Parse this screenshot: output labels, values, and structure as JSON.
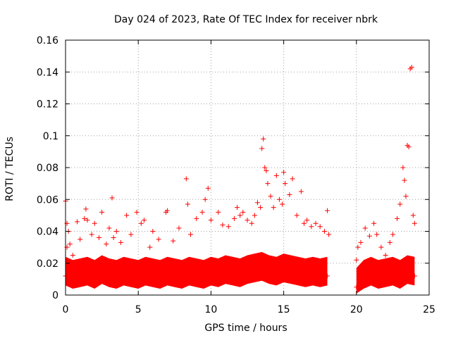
{
  "chart_data": {
    "type": "scatter",
    "title": "Day 024 of 2023, Rate Of TEC Index for receiver nbrk",
    "xlabel": "GPS time / hours",
    "ylabel": "ROTI / TECUs",
    "xlim": [
      0,
      25
    ],
    "ylim": [
      0,
      0.16
    ],
    "xticks": [
      0,
      5,
      10,
      15,
      20,
      25
    ],
    "xtick_labels": [
      "0",
      "5",
      "10",
      "15",
      "20",
      "25"
    ],
    "yticks": [
      0,
      0.02,
      0.04,
      0.06,
      0.08,
      0.1,
      0.12,
      0.14,
      0.16
    ],
    "ytick_labels": [
      "0",
      "0.02",
      "0.04",
      "0.06",
      "0.08",
      "0.1",
      "0.12",
      "0.14",
      "0.16"
    ],
    "grid": true,
    "marker": "plus",
    "color": "#ff0000",
    "series": [
      {
        "x": [
          0.0,
          0.1,
          0.1,
          0.2,
          0.3,
          0.5,
          0.8,
          1.0,
          1.3,
          1.4,
          1.5,
          1.8,
          2.0,
          2.3,
          2.5,
          2.8,
          3.0,
          3.2,
          3.3,
          3.5,
          3.8,
          4.2,
          4.5,
          4.9,
          5.2,
          5.4,
          5.8,
          6.0,
          6.4,
          6.9,
          7.0,
          7.4,
          7.8,
          8.3,
          8.4,
          8.6,
          9.0,
          9.4,
          9.6,
          9.8,
          10.0,
          10.5,
          10.8,
          11.2,
          11.6,
          11.8,
          12.0,
          12.2,
          12.5,
          12.8,
          13.0,
          13.2,
          13.4,
          13.5,
          13.6,
          13.7,
          13.8,
          13.9,
          14.1,
          14.3,
          14.5,
          14.7,
          14.9,
          15.0,
          15.1,
          15.4,
          15.6,
          15.9,
          16.2,
          16.4,
          16.6,
          16.9,
          17.2,
          17.5,
          17.8,
          18.0,
          18.1,
          20.0,
          20.1,
          20.3,
          20.6,
          20.9,
          21.2,
          21.4,
          21.7,
          22.0,
          22.3,
          22.5,
          22.8,
          23.0,
          23.2,
          23.3,
          23.4,
          23.5,
          23.6,
          23.7,
          23.8,
          23.9,
          24.0
        ],
        "y": [
          0.059,
          0.045,
          0.03,
          0.04,
          0.032,
          0.025,
          0.046,
          0.035,
          0.048,
          0.054,
          0.047,
          0.038,
          0.045,
          0.036,
          0.052,
          0.032,
          0.042,
          0.061,
          0.036,
          0.04,
          0.033,
          0.05,
          0.038,
          0.052,
          0.045,
          0.047,
          0.03,
          0.04,
          0.035,
          0.052,
          0.053,
          0.034,
          0.042,
          0.073,
          0.057,
          0.038,
          0.048,
          0.052,
          0.06,
          0.067,
          0.047,
          0.052,
          0.044,
          0.043,
          0.048,
          0.055,
          0.05,
          0.052,
          0.047,
          0.045,
          0.05,
          0.058,
          0.055,
          0.092,
          0.098,
          0.08,
          0.078,
          0.07,
          0.062,
          0.055,
          0.075,
          0.06,
          0.057,
          0.077,
          0.07,
          0.063,
          0.073,
          0.05,
          0.065,
          0.045,
          0.047,
          0.043,
          0.045,
          0.043,
          0.04,
          0.053,
          0.038,
          0.022,
          0.03,
          0.033,
          0.042,
          0.037,
          0.045,
          0.038,
          0.03,
          0.025,
          0.033,
          0.038,
          0.048,
          0.057,
          0.08,
          0.072,
          0.062,
          0.094,
          0.093,
          0.142,
          0.143,
          0.05,
          0.045
        ]
      },
      {
        "x": [
          0.0,
          0.5,
          1.0,
          1.5,
          2.0,
          2.5,
          3.0,
          3.5,
          4.0,
          4.5,
          5.0,
          5.5,
          6.0,
          6.5,
          7.0,
          7.5,
          8.0,
          8.5,
          9.0,
          9.5,
          10.0,
          10.5,
          11.0,
          11.5,
          12.0,
          12.5,
          13.0,
          13.5,
          14.0,
          14.5,
          15.0,
          15.5,
          16.0,
          16.5,
          17.0,
          17.5,
          18.0,
          20.0,
          20.5,
          21.0,
          21.5,
          22.0,
          22.5,
          23.0,
          23.5,
          24.0
        ],
        "y": [
          0.012,
          0.01,
          0.011,
          0.012,
          0.01,
          0.013,
          0.011,
          0.01,
          0.012,
          0.011,
          0.01,
          0.012,
          0.011,
          0.01,
          0.012,
          0.011,
          0.01,
          0.012,
          0.011,
          0.01,
          0.012,
          0.011,
          0.013,
          0.012,
          0.011,
          0.013,
          0.014,
          0.015,
          0.013,
          0.012,
          0.014,
          0.013,
          0.012,
          0.011,
          0.012,
          0.011,
          0.012,
          0.005,
          0.01,
          0.012,
          0.01,
          0.011,
          0.012,
          0.01,
          0.013,
          0.012
        ]
      }
    ]
  }
}
